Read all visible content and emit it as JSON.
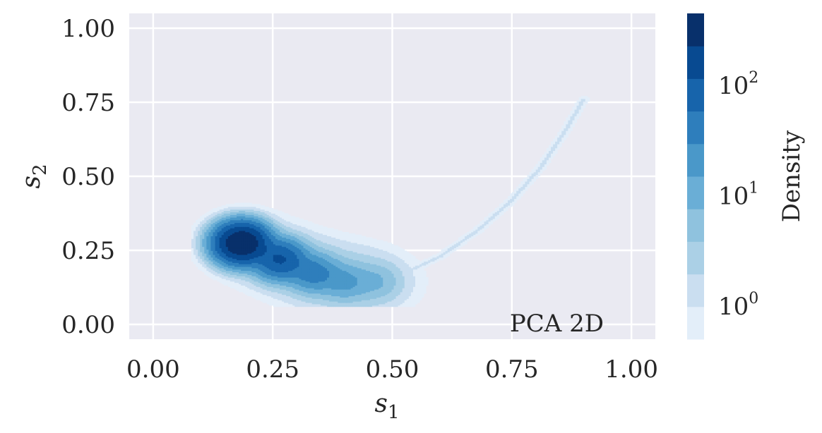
{
  "chart_data": {
    "type": "heatmap",
    "title": "",
    "xlabel": "s",
    "xlabel_sub": "1",
    "ylabel": "s",
    "ylabel_sub": "2",
    "xlim": [
      -0.05,
      1.05
    ],
    "ylim": [
      -0.05,
      1.05
    ],
    "x_ticks": [
      0.0,
      0.25,
      0.5,
      0.75,
      1.0
    ],
    "x_tick_labels": [
      "0.00",
      "0.25",
      "0.50",
      "0.75",
      "1.00"
    ],
    "y_ticks": [
      0.0,
      0.25,
      0.5,
      0.75,
      1.0
    ],
    "y_tick_labels": [
      "0.00",
      "0.25",
      "0.50",
      "0.75",
      "1.00"
    ],
    "grid": true,
    "annotation": "PCA 2D",
    "colorbar": {
      "label": "Density",
      "scale": "log",
      "range": [
        0.5,
        450
      ],
      "ticks": [
        {
          "value": 1,
          "base": "10",
          "exp": "0"
        },
        {
          "value": 10,
          "base": "10",
          "exp": "1"
        },
        {
          "value": 100,
          "base": "10",
          "exp": "2"
        }
      ],
      "colors": [
        "#e3eef9",
        "#cadef0",
        "#abd0e6",
        "#8fc2de",
        "#6aaed6",
        "#4a98c9",
        "#2e7ebc",
        "#1764ab",
        "#084a91",
        "#08306b"
      ]
    },
    "clusters": [
      {
        "x": 0.185,
        "y": 0.275,
        "peak_density": 450
      },
      {
        "x": 0.265,
        "y": 0.22,
        "peak_density": 120
      },
      {
        "x": 0.335,
        "y": 0.175,
        "peak_density": 40
      },
      {
        "x": 0.4,
        "y": 0.145,
        "peak_density": 15
      },
      {
        "x": 0.465,
        "y": 0.145,
        "peak_density": 6
      }
    ],
    "tail": [
      {
        "x": 0.52,
        "y": 0.17
      },
      {
        "x": 0.6,
        "y": 0.23
      },
      {
        "x": 0.68,
        "y": 0.32
      },
      {
        "x": 0.75,
        "y": 0.42
      },
      {
        "x": 0.81,
        "y": 0.53
      },
      {
        "x": 0.86,
        "y": 0.65
      },
      {
        "x": 0.9,
        "y": 0.76
      }
    ]
  }
}
